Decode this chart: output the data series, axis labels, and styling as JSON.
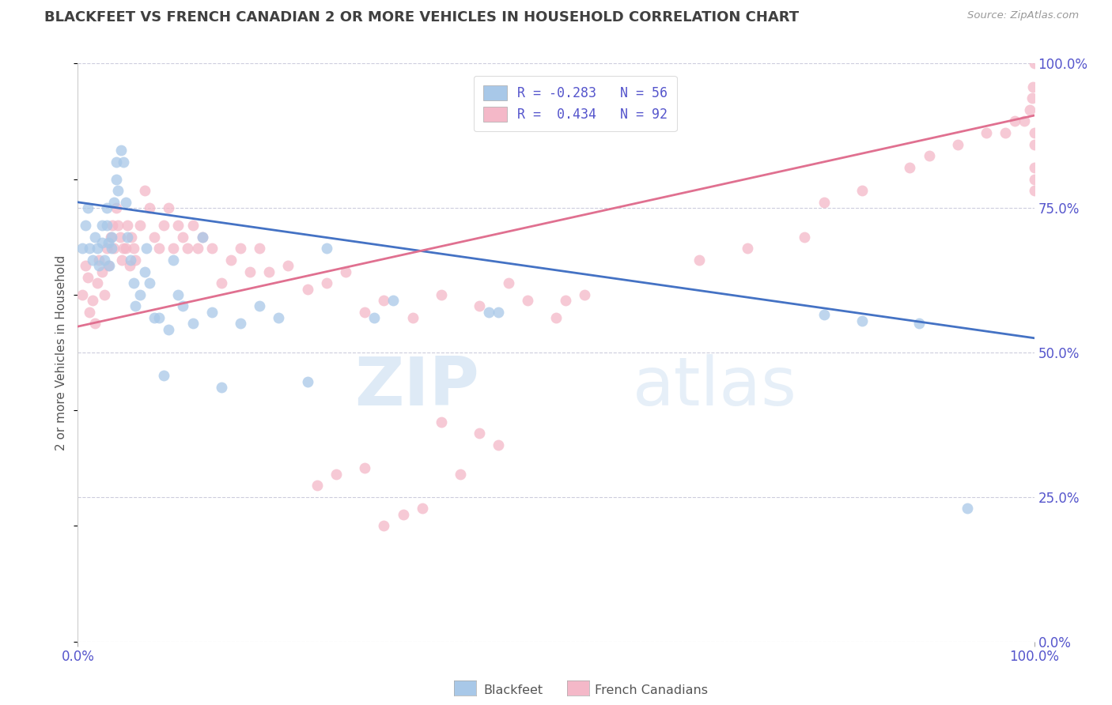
{
  "title": "BLACKFEET VS FRENCH CANADIAN 2 OR MORE VEHICLES IN HOUSEHOLD CORRELATION CHART",
  "source": "Source: ZipAtlas.com",
  "ylabel": "2 or more Vehicles in Household",
  "watermark_zip": "ZIP",
  "watermark_atlas": "atlas",
  "legend_entries": [
    {
      "label": "R = -0.283   N = 56",
      "color": "#A8C8E8"
    },
    {
      "label": "R =  0.434   N = 92",
      "color": "#F4B8C8"
    }
  ],
  "blue_color": "#A8C8E8",
  "pink_color": "#F4B8C8",
  "blue_line_color": "#4472C4",
  "pink_line_color": "#E07090",
  "title_color": "#404040",
  "axis_label_color": "#5555CC",
  "grid_color": "#CCCCDD",
  "background_color": "#FFFFFF",
  "ytick_vals": [
    0.0,
    0.25,
    0.5,
    0.75,
    1.0
  ],
  "ytick_labels": [
    "0.0%",
    "25.0%",
    "50.0%",
    "75.0%",
    "100.0%"
  ],
  "xtick_vals": [
    0.0,
    1.0
  ],
  "xtick_labels": [
    "0.0%",
    "100.0%"
  ],
  "blue_line_x0": 0.0,
  "blue_line_x1": 1.0,
  "blue_line_y0": 0.76,
  "blue_line_y1": 0.525,
  "pink_line_x0": 0.0,
  "pink_line_x1": 1.0,
  "pink_line_y0": 0.545,
  "pink_line_y1": 0.91,
  "blue_scatter_x": [
    0.005,
    0.008,
    0.01,
    0.012,
    0.015,
    0.018,
    0.02,
    0.022,
    0.025,
    0.025,
    0.028,
    0.03,
    0.03,
    0.032,
    0.033,
    0.035,
    0.035,
    0.038,
    0.04,
    0.04,
    0.042,
    0.045,
    0.048,
    0.05,
    0.052,
    0.055,
    0.058,
    0.06,
    0.065,
    0.07,
    0.072,
    0.075,
    0.08,
    0.085,
    0.09,
    0.095,
    0.1,
    0.105,
    0.11,
    0.12,
    0.13,
    0.14,
    0.15,
    0.17,
    0.19,
    0.21,
    0.24,
    0.26,
    0.31,
    0.33,
    0.43,
    0.44,
    0.78,
    0.82,
    0.88,
    0.93
  ],
  "blue_scatter_y": [
    0.68,
    0.72,
    0.75,
    0.68,
    0.66,
    0.7,
    0.68,
    0.65,
    0.69,
    0.72,
    0.66,
    0.75,
    0.72,
    0.69,
    0.65,
    0.7,
    0.68,
    0.76,
    0.8,
    0.83,
    0.78,
    0.85,
    0.83,
    0.76,
    0.7,
    0.66,
    0.62,
    0.58,
    0.6,
    0.64,
    0.68,
    0.62,
    0.56,
    0.56,
    0.46,
    0.54,
    0.66,
    0.6,
    0.58,
    0.55,
    0.7,
    0.57,
    0.44,
    0.55,
    0.58,
    0.56,
    0.45,
    0.68,
    0.56,
    0.59,
    0.57,
    0.57,
    0.565,
    0.555,
    0.55,
    0.23
  ],
  "pink_scatter_x": [
    0.005,
    0.008,
    0.01,
    0.012,
    0.015,
    0.018,
    0.02,
    0.022,
    0.025,
    0.028,
    0.03,
    0.032,
    0.034,
    0.036,
    0.038,
    0.04,
    0.042,
    0.044,
    0.046,
    0.048,
    0.05,
    0.052,
    0.054,
    0.056,
    0.058,
    0.06,
    0.065,
    0.07,
    0.075,
    0.08,
    0.085,
    0.09,
    0.095,
    0.1,
    0.105,
    0.11,
    0.115,
    0.12,
    0.125,
    0.13,
    0.14,
    0.15,
    0.16,
    0.17,
    0.18,
    0.19,
    0.2,
    0.22,
    0.24,
    0.26,
    0.28,
    0.3,
    0.32,
    0.35,
    0.38,
    0.42,
    0.45,
    0.47,
    0.5,
    0.53,
    0.38,
    0.42,
    0.44,
    0.3,
    0.27,
    0.25,
    0.32,
    0.34,
    0.36,
    0.4,
    0.51,
    0.65,
    0.7,
    0.76,
    0.78,
    0.82,
    0.87,
    0.89,
    0.92,
    0.95,
    0.97,
    0.98,
    0.99,
    0.995,
    0.998,
    0.999,
    1.0,
    1.0,
    1.0,
    1.0,
    1.0,
    1.0
  ],
  "pink_scatter_y": [
    0.6,
    0.65,
    0.63,
    0.57,
    0.59,
    0.55,
    0.62,
    0.66,
    0.64,
    0.6,
    0.68,
    0.65,
    0.7,
    0.72,
    0.68,
    0.75,
    0.72,
    0.7,
    0.66,
    0.68,
    0.68,
    0.72,
    0.65,
    0.7,
    0.68,
    0.66,
    0.72,
    0.78,
    0.75,
    0.7,
    0.68,
    0.72,
    0.75,
    0.68,
    0.72,
    0.7,
    0.68,
    0.72,
    0.68,
    0.7,
    0.68,
    0.62,
    0.66,
    0.68,
    0.64,
    0.68,
    0.64,
    0.65,
    0.61,
    0.62,
    0.64,
    0.57,
    0.59,
    0.56,
    0.6,
    0.58,
    0.62,
    0.59,
    0.56,
    0.6,
    0.38,
    0.36,
    0.34,
    0.3,
    0.29,
    0.27,
    0.2,
    0.22,
    0.23,
    0.29,
    0.59,
    0.66,
    0.68,
    0.7,
    0.76,
    0.78,
    0.82,
    0.84,
    0.86,
    0.88,
    0.88,
    0.9,
    0.9,
    0.92,
    0.94,
    0.96,
    0.88,
    0.86,
    0.82,
    0.8,
    0.78,
    1.0
  ]
}
